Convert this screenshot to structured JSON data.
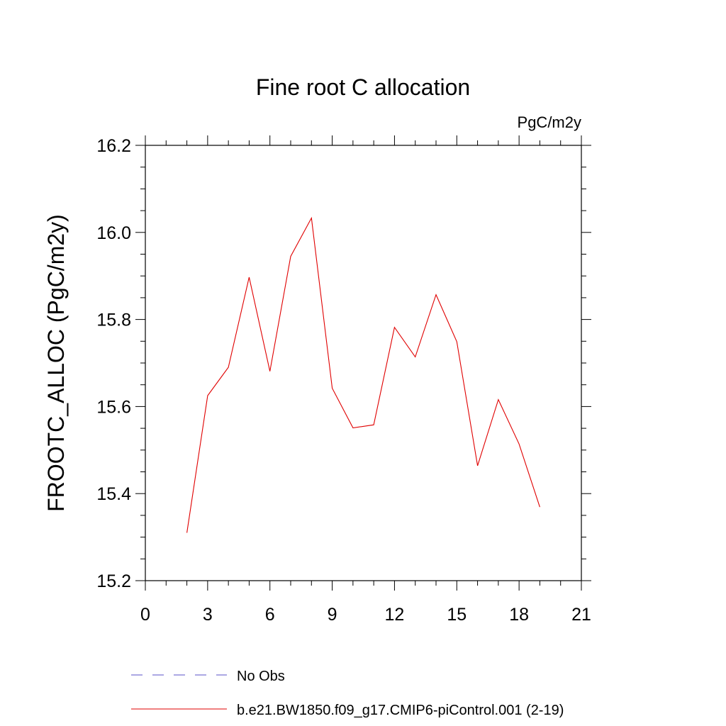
{
  "chart_data": {
    "type": "line",
    "title": "Fine root C allocation",
    "units": "PgC/m2y",
    "ylabel": "FROOTC_ALLOC  (PgC/m2y)",
    "xlabel": "",
    "xlim": [
      0,
      21
    ],
    "ylim": [
      15.2,
      16.2
    ],
    "xticks": [
      0,
      3,
      6,
      9,
      12,
      15,
      18,
      21
    ],
    "yticks": [
      15.2,
      15.4,
      15.6,
      15.8,
      16.0,
      16.2
    ],
    "xtick_labels": [
      "0",
      "3",
      "6",
      "9",
      "12",
      "15",
      "18",
      "21"
    ],
    "ytick_labels": [
      "15.2",
      "15.4",
      "15.6",
      "15.8",
      "16.0",
      "16.2"
    ],
    "grid": false,
    "legend_placement": "bottom",
    "series": [
      {
        "name": "No Obs",
        "color": "#5a50c8",
        "style": "dashed",
        "x": [],
        "values": []
      },
      {
        "name": "b.e21.BW1850.f09_g17.CMIP6-piControl.001 (2-19)",
        "color": "#e00000",
        "style": "solid",
        "x": [
          2,
          3,
          4,
          5,
          6,
          7,
          8,
          9,
          10,
          11,
          12,
          13,
          14,
          15,
          16,
          17,
          18,
          19
        ],
        "values": [
          15.31,
          15.625,
          15.69,
          15.897,
          15.681,
          15.945,
          16.033,
          15.642,
          15.551,
          15.558,
          15.782,
          15.714,
          15.857,
          15.749,
          15.464,
          15.616,
          15.514,
          15.369
        ]
      }
    ]
  }
}
